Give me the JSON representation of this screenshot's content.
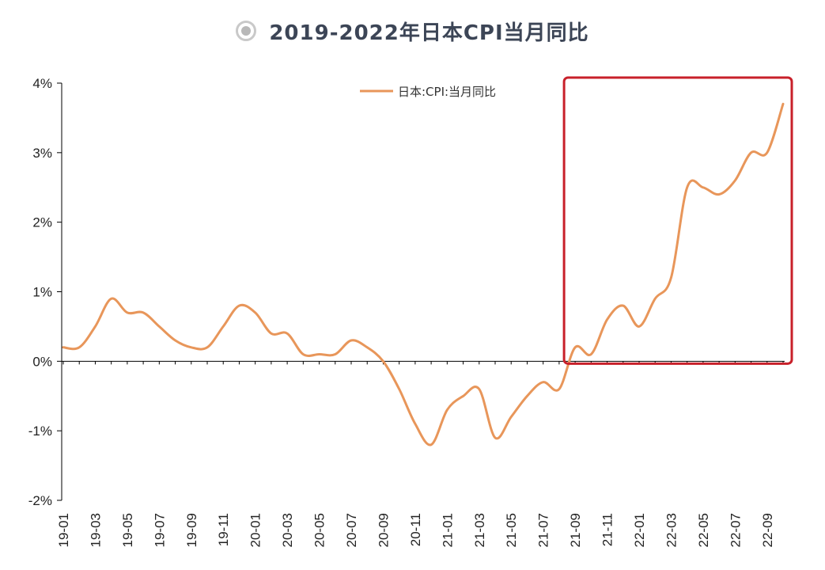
{
  "header": {
    "title": "2019-2022年日本CPI当月同比",
    "icon": "radio-target-icon"
  },
  "colors": {
    "series": "#e8965a",
    "highlight_box": "#c8202a",
    "axis": "#000000",
    "title": "#3c4556"
  },
  "chart_data": {
    "type": "line",
    "title": "2019-2022年日本CPI当月同比",
    "xlabel": "",
    "ylabel": "",
    "ylim": [
      -2,
      4
    ],
    "yticks": [
      -2,
      -1,
      0,
      1,
      2,
      3,
      4
    ],
    "ytick_labels": [
      "-2%",
      "-1%",
      "0%",
      "1%",
      "2%",
      "3%",
      "4%"
    ],
    "x_tick_labels": [
      "19-01",
      "19-03",
      "19-05",
      "19-07",
      "19-09",
      "19-11",
      "20-01",
      "20-03",
      "20-05",
      "20-07",
      "20-09",
      "20-11",
      "21-01",
      "21-03",
      "21-05",
      "21-07",
      "21-09",
      "21-11",
      "22-01",
      "22-03",
      "22-05",
      "22-07",
      "22-09"
    ],
    "x": [
      "19-01",
      "19-02",
      "19-03",
      "19-04",
      "19-05",
      "19-06",
      "19-07",
      "19-08",
      "19-09",
      "19-10",
      "19-11",
      "19-12",
      "20-01",
      "20-02",
      "20-03",
      "20-04",
      "20-05",
      "20-06",
      "20-07",
      "20-08",
      "20-09",
      "20-10",
      "20-11",
      "20-12",
      "21-01",
      "21-02",
      "21-03",
      "21-04",
      "21-05",
      "21-06",
      "21-07",
      "21-08",
      "21-09",
      "21-10",
      "21-11",
      "21-12",
      "22-01",
      "22-02",
      "22-03",
      "22-04",
      "22-05",
      "22-06",
      "22-07",
      "22-08",
      "22-09",
      "22-10"
    ],
    "series": [
      {
        "name": "日本:CPI:当月同比",
        "values": [
          0.2,
          0.2,
          0.5,
          0.9,
          0.7,
          0.7,
          0.5,
          0.3,
          0.2,
          0.2,
          0.5,
          0.8,
          0.7,
          0.4,
          0.4,
          0.1,
          0.1,
          0.1,
          0.3,
          0.2,
          0.0,
          -0.4,
          -0.9,
          -1.2,
          -0.7,
          -0.5,
          -0.4,
          -1.1,
          -0.8,
          -0.5,
          -0.3,
          -0.4,
          0.2,
          0.1,
          0.6,
          0.8,
          0.5,
          0.9,
          1.2,
          2.5,
          2.5,
          2.4,
          2.6,
          3.0,
          3.0,
          3.7
        ]
      }
    ],
    "legend_position": "top",
    "grid": false,
    "highlight_range": [
      "21-09",
      "22-10"
    ]
  }
}
